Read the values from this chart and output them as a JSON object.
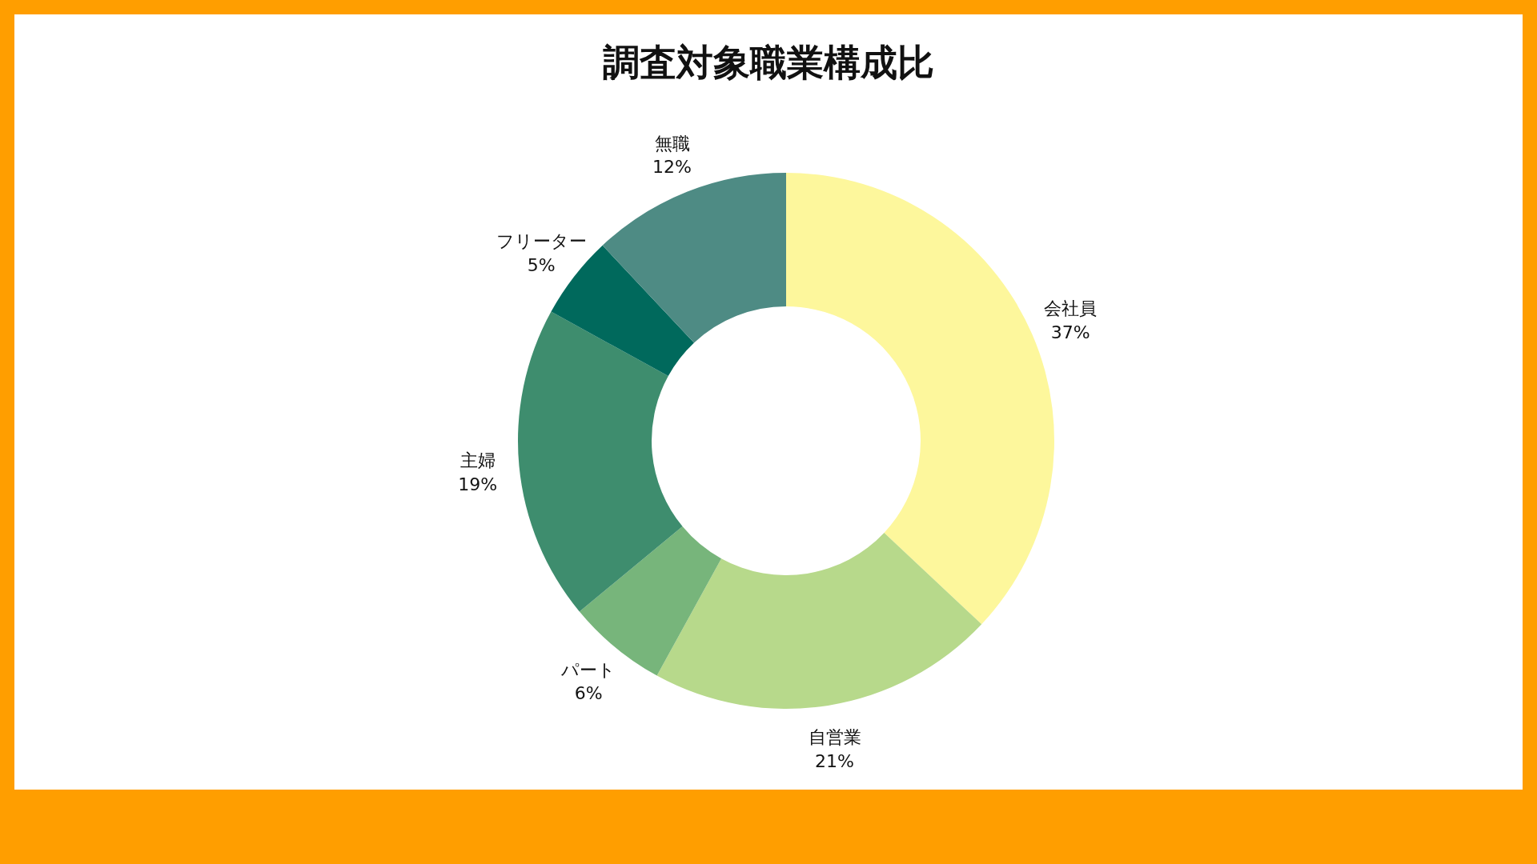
{
  "chart_data": {
    "type": "donut",
    "title": "調査対象職業構成比",
    "categories": [
      "会社員",
      "自営業",
      "パート",
      "主婦",
      "フリーター",
      "無職"
    ],
    "values": [
      37,
      21,
      6,
      19,
      5,
      12
    ],
    "value_labels": [
      "37%",
      "21%",
      "6%",
      "19%",
      "5%",
      "12%"
    ],
    "colors": [
      "#fdf79c",
      "#b7d98b",
      "#77b57b",
      "#3e8d6e",
      "#00695c",
      "#4e8b84"
    ]
  }
}
